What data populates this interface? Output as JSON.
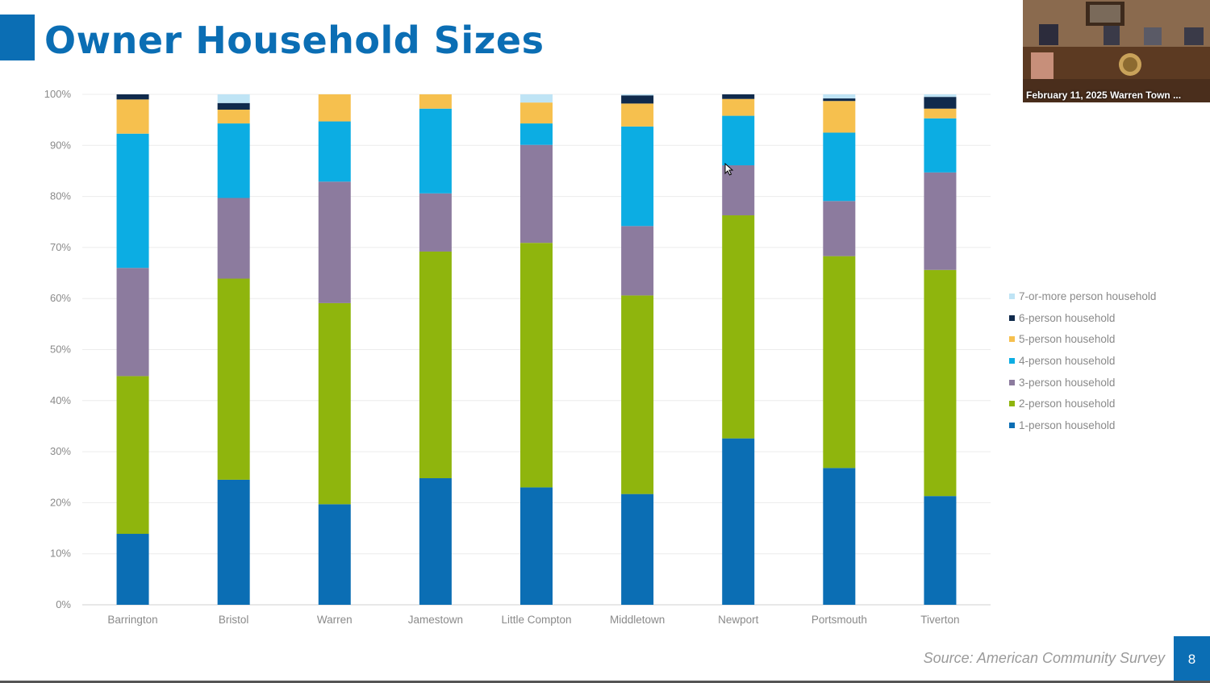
{
  "slide": {
    "title": "Owner Household Sizes",
    "source": "Source: American Community Survey",
    "page_number": "8"
  },
  "video": {
    "caption": "February 11, 2025 Warren Town ...",
    "icon": "video-feed"
  },
  "colors": {
    "accent": "#0b6eb4",
    "1-person household": "#0b6eb4",
    "2-person household": "#8fb50d",
    "3-person household": "#8c7b9e",
    "4-person household": "#0cade3",
    "5-person household": "#f6c04e",
    "6-person household": "#102a4c",
    "7-or-more person household": "#bfe4f5"
  },
  "chart_data": {
    "type": "bar",
    "stacked": true,
    "title": "Owner Household Sizes",
    "xlabel": "",
    "ylabel": "",
    "ylim": [
      0,
      100
    ],
    "yticks": [
      "0%",
      "10%",
      "20%",
      "30%",
      "40%",
      "50%",
      "60%",
      "70%",
      "80%",
      "90%",
      "100%"
    ],
    "grid": true,
    "legend_position": "right",
    "categories": [
      "Barrington",
      "Bristol",
      "Warren",
      "Jamestown",
      "Little Compton",
      "Middletown",
      "Newport",
      "Portsmouth",
      "Tiverton"
    ],
    "series": [
      {
        "name": "1-person household",
        "values": [
          13.9,
          24.5,
          19.7,
          24.8,
          23.0,
          21.7,
          32.6,
          26.8,
          21.3
        ]
      },
      {
        "name": "2-person household",
        "values": [
          30.9,
          39.4,
          39.4,
          44.4,
          47.9,
          38.9,
          43.7,
          41.5,
          44.3
        ]
      },
      {
        "name": "3-person household",
        "values": [
          21.2,
          15.8,
          23.8,
          11.4,
          19.2,
          13.6,
          9.8,
          10.8,
          19.1
        ]
      },
      {
        "name": "4-person household",
        "values": [
          26.3,
          14.6,
          11.8,
          16.6,
          4.2,
          19.5,
          9.7,
          13.4,
          10.6
        ]
      },
      {
        "name": "5-person household",
        "values": [
          6.7,
          2.7,
          5.3,
          2.8,
          4.1,
          4.5,
          3.3,
          6.2,
          1.9
        ]
      },
      {
        "name": "6-person household",
        "values": [
          1.0,
          1.3,
          0.0,
          0.0,
          0.0,
          1.6,
          0.9,
          0.5,
          2.3
        ]
      },
      {
        "name": "7-or-more person household",
        "values": [
          0.0,
          1.7,
          0.0,
          0.0,
          1.6,
          0.2,
          0.0,
          0.8,
          0.5
        ]
      }
    ],
    "legend_order": [
      "7-or-more person household",
      "6-person household",
      "5-person household",
      "4-person household",
      "3-person household",
      "2-person household",
      "1-person household"
    ]
  }
}
